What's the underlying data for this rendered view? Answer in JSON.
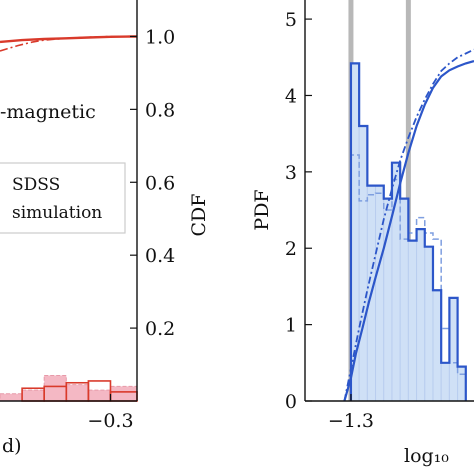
{
  "colors": {
    "red": "#d93a2b",
    "red_fill": "#f4b8c4",
    "blue": "#2c56c9",
    "blue_fill": "#cfe0f6",
    "grey_line": "#b8b8b8"
  },
  "chart_data": [
    {
      "type": "bar",
      "title": "",
      "annotation": "-magnetic",
      "xlabel": "d)",
      "ylabel_right": "CDF",
      "xlim": [
        -0.8,
        -0.18
      ],
      "ylim_right": [
        0,
        1.1
      ],
      "x_ticks": [
        -0.3
      ],
      "x_tick_labels": [
        "−0.3"
      ],
      "y_right_ticks": [
        0.2,
        0.4,
        0.6,
        0.8,
        1.0
      ],
      "y_right_tick_labels": [
        "0.2",
        "0.4",
        "0.6",
        "0.8",
        "1.0"
      ],
      "legend": {
        "position": "center-right",
        "entries": [
          "SDSS",
          "simulation"
        ]
      },
      "series": [
        {
          "name": "SDSS",
          "kind": "cdf",
          "style": "solid",
          "x": [
            -0.8,
            -0.7,
            -0.6,
            -0.5,
            -0.4,
            -0.3,
            -0.2,
            -0.18
          ],
          "values": [
            0.985,
            0.99,
            0.993,
            0.995,
            0.997,
            0.999,
            1.0,
            1.0
          ]
        },
        {
          "name": "simulation",
          "kind": "cdf",
          "style": "dashdot",
          "x": [
            -0.8,
            -0.72,
            -0.65,
            -0.6,
            -0.5,
            -0.4,
            -0.3,
            -0.18
          ],
          "values": [
            0.96,
            0.975,
            0.985,
            0.99,
            0.995,
            0.998,
            1.0,
            1.0
          ]
        },
        {
          "name": "SDSS",
          "kind": "hist",
          "bin_edges": [
            -0.8,
            -0.7,
            -0.6,
            -0.5,
            -0.4,
            -0.3,
            -0.18
          ],
          "values": [
            0.02,
            0.03,
            0.07,
            0.045,
            0.03,
            0.04
          ]
        },
        {
          "name": "simulation",
          "kind": "hist",
          "bin_edges": [
            -0.8,
            -0.7,
            -0.6,
            -0.5,
            -0.4,
            -0.3,
            -0.18
          ],
          "values": [
            0.0,
            0.035,
            0.04,
            0.05,
            0.055,
            0.025
          ]
        }
      ]
    },
    {
      "type": "bar",
      "title": "",
      "xlabel": "log₁₀",
      "ylabel": "PDF",
      "xlim": [
        -1.58,
        -0.55
      ],
      "ylim": [
        0,
        5.25
      ],
      "x_ticks": [
        -1.3
      ],
      "x_tick_labels": [
        "−1.3"
      ],
      "y_ticks": [
        0,
        1,
        2,
        3,
        4,
        5
      ],
      "y_tick_labels": [
        "0",
        "1",
        "2",
        "3",
        "4",
        "5"
      ],
      "reference_lines_x": [
        -1.3,
        -0.95
      ],
      "series": [
        {
          "name": "SDSS",
          "kind": "hist",
          "bin_edges": [
            -1.3,
            -1.25,
            -1.2,
            -1.15,
            -1.1,
            -1.05,
            -1.0,
            -0.95,
            -0.9,
            -0.85,
            -0.8,
            -0.75,
            -0.7,
            -0.65,
            -0.6
          ],
          "values": [
            4.42,
            3.6,
            2.82,
            2.82,
            2.65,
            3.12,
            2.65,
            2.1,
            2.25,
            2.02,
            1.45,
            0.5,
            1.35,
            0.45
          ]
        },
        {
          "name": "simulation",
          "kind": "hist",
          "bin_edges": [
            -1.3,
            -1.25,
            -1.2,
            -1.15,
            -1.1,
            -1.05,
            -1.0,
            -0.95,
            -0.9,
            -0.85,
            -0.8,
            -0.75,
            -0.7,
            -0.65,
            -0.6
          ],
          "values": [
            3.22,
            2.62,
            2.7,
            2.72,
            2.5,
            2.9,
            2.12,
            2.2,
            2.4,
            2.2,
            2.12,
            0.95,
            0.5,
            0.35
          ]
        },
        {
          "name": "SDSS",
          "kind": "cdf",
          "style": "solid",
          "x": [
            -1.34,
            -1.3,
            -1.27,
            -1.23,
            -1.19,
            -1.15,
            -1.1,
            -1.05,
            -1.0,
            -0.95,
            -0.9,
            -0.85,
            -0.8,
            -0.75,
            -0.7,
            -0.65,
            -0.6,
            -0.55
          ],
          "values": [
            0,
            0.3,
            0.62,
            0.95,
            1.3,
            1.62,
            2.0,
            2.42,
            2.85,
            3.25,
            3.6,
            3.88,
            4.1,
            4.25,
            4.33,
            4.38,
            4.42,
            4.45
          ]
        },
        {
          "name": "simulation",
          "kind": "cdf",
          "style": "dashdot",
          "x": [
            -1.34,
            -1.3,
            -1.25,
            -1.2,
            -1.15,
            -1.1,
            -1.05,
            -1.0,
            -0.95,
            -0.9,
            -0.85,
            -0.8,
            -0.75,
            -0.7,
            -0.65,
            -0.6,
            -0.55
          ],
          "values": [
            0,
            0.42,
            0.95,
            1.45,
            1.92,
            2.38,
            2.78,
            3.15,
            3.45,
            3.72,
            3.95,
            4.15,
            4.32,
            4.42,
            4.5,
            4.55,
            4.6
          ]
        }
      ]
    }
  ]
}
